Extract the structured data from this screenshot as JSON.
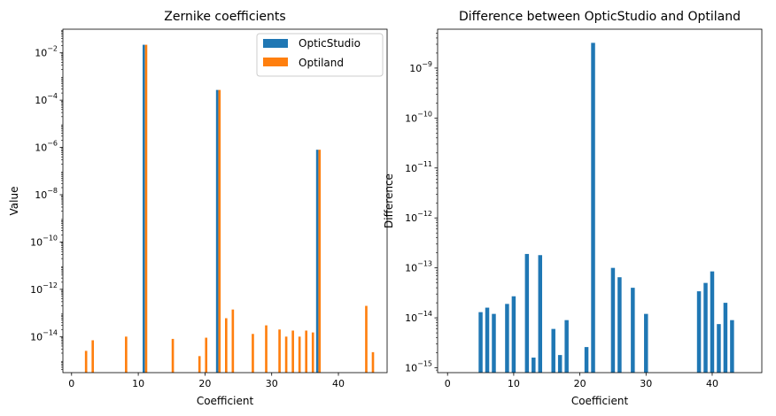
{
  "colors": {
    "opticstudio": "#1f77b4",
    "optiland": "#ff7f0e",
    "difference": "#1f77b4"
  },
  "chart_data": [
    {
      "type": "bar",
      "title": "Zernike coefficients",
      "xlabel": "Coefficient",
      "ylabel": "Value",
      "yscale": "log",
      "xlim": [
        -1.3,
        47.3
      ],
      "ylim": [
        3e-16,
        0.1
      ],
      "xticks": [
        0,
        10,
        20,
        30,
        40
      ],
      "xtick_labels": [
        "0",
        "10",
        "20",
        "30",
        "40"
      ],
      "yticks": [
        1e-14,
        1e-12,
        1e-10,
        1e-08,
        1e-06,
        0.0001,
        0.01
      ],
      "ytick_labels": [
        [
          "10",
          "−14"
        ],
        [
          "10",
          "−12"
        ],
        [
          "10",
          "−10"
        ],
        [
          "10",
          "−8"
        ],
        [
          "10",
          "−6"
        ],
        [
          "10",
          "−4"
        ],
        [
          "10",
          "−2"
        ]
      ],
      "legend_position": "upper right",
      "series": [
        {
          "name": "OpticStudio",
          "color": "#1f77b4",
          "x": [
            11,
            22,
            37
          ],
          "values": [
            0.022,
            0.00027,
            8e-07
          ]
        },
        {
          "name": "Optiland",
          "color": "#ff7f0e",
          "x": [
            2,
            3,
            8,
            11,
            15,
            19,
            20,
            22,
            23,
            24,
            27,
            29,
            31,
            32,
            33,
            34,
            35,
            36,
            37,
            44,
            45
          ],
          "values": [
            2.5e-15,
            7e-15,
            1e-14,
            0.022,
            8e-15,
            1.5e-15,
            9e-15,
            0.00027,
            6e-14,
            1.4e-13,
            1.3e-14,
            3e-14,
            2e-14,
            1e-14,
            1.8e-14,
            1e-14,
            1.8e-14,
            1.5e-14,
            8e-07,
            2e-13,
            2.2e-15
          ]
        }
      ]
    },
    {
      "type": "bar",
      "title": "Difference between OpticStudio and Optiland",
      "xlabel": "Coefficient",
      "ylabel": "Difference",
      "yscale": "log",
      "xlim": [
        -1.5,
        47.5
      ],
      "ylim": [
        8e-16,
        6e-09
      ],
      "xticks": [
        0,
        10,
        20,
        30,
        40
      ],
      "xtick_labels": [
        "0",
        "10",
        "20",
        "30",
        "40"
      ],
      "yticks": [
        1e-15,
        1e-14,
        1e-13,
        1e-12,
        1e-11,
        1e-10,
        1e-09
      ],
      "ytick_labels": [
        [
          "10",
          "−15"
        ],
        [
          "10",
          "−14"
        ],
        [
          "10",
          "−13"
        ],
        [
          "10",
          "−12"
        ],
        [
          "10",
          "−11"
        ],
        [
          "10",
          "−10"
        ],
        [
          "10",
          "−9"
        ]
      ],
      "series": [
        {
          "color": "#1f77b4",
          "x": [
            5,
            6,
            7,
            9,
            10,
            12,
            13,
            14,
            16,
            17,
            18,
            21,
            22,
            25,
            26,
            28,
            30,
            38,
            39,
            40,
            41,
            42,
            43
          ],
          "values": [
            1.3e-14,
            1.6e-14,
            1.2e-14,
            1.9e-14,
            2.7e-14,
            1.9e-13,
            1.6e-15,
            1.8e-13,
            6e-15,
            1.8e-15,
            9e-15,
            2.6e-15,
            3.2e-09,
            1e-13,
            6.5e-14,
            4e-14,
            1.2e-14,
            3.4e-14,
            5e-14,
            8.5e-14,
            7.5e-15,
            2e-14,
            9e-15
          ]
        }
      ]
    }
  ]
}
